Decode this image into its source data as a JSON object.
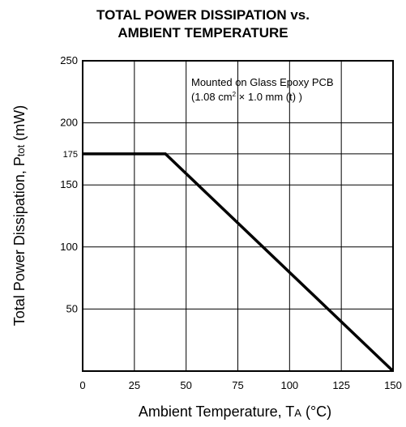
{
  "chart_data": {
    "type": "line",
    "title_line1": "TOTAL POWER DISSIPATION vs.",
    "title_line2": "AMBIENT TEMPERATURE",
    "xlabel_main": "Ambient Temperature, T",
    "xlabel_sub": "A",
    "xlabel_unit": " (°C)",
    "ylabel_main": "Total Power Dissipation, P",
    "ylabel_sub": "tot",
    "ylabel_unit": " (mW)",
    "xlim": [
      0,
      150
    ],
    "ylim": [
      0,
      250
    ],
    "x_ticks": [
      0,
      25,
      50,
      75,
      100,
      125,
      150
    ],
    "x_tick_labels": [
      "0",
      "25",
      "50",
      "75",
      "100",
      "125",
      "150"
    ],
    "y_ticks": [
      50,
      100,
      150,
      175,
      200,
      250
    ],
    "y_tick_labels": [
      "50",
      "100",
      "150",
      "175",
      "200",
      "250"
    ],
    "grid": true,
    "annotation_line1": "Mounted on Glass Epoxy PCB",
    "annotation_line2_a": "(1.08 cm",
    "annotation_line2_sup": "2",
    "annotation_line2_b": " × 1.0 mm (t) )",
    "series": [
      {
        "x": [
          0,
          40,
          150
        ],
        "y": [
          175,
          175,
          0
        ]
      }
    ]
  }
}
